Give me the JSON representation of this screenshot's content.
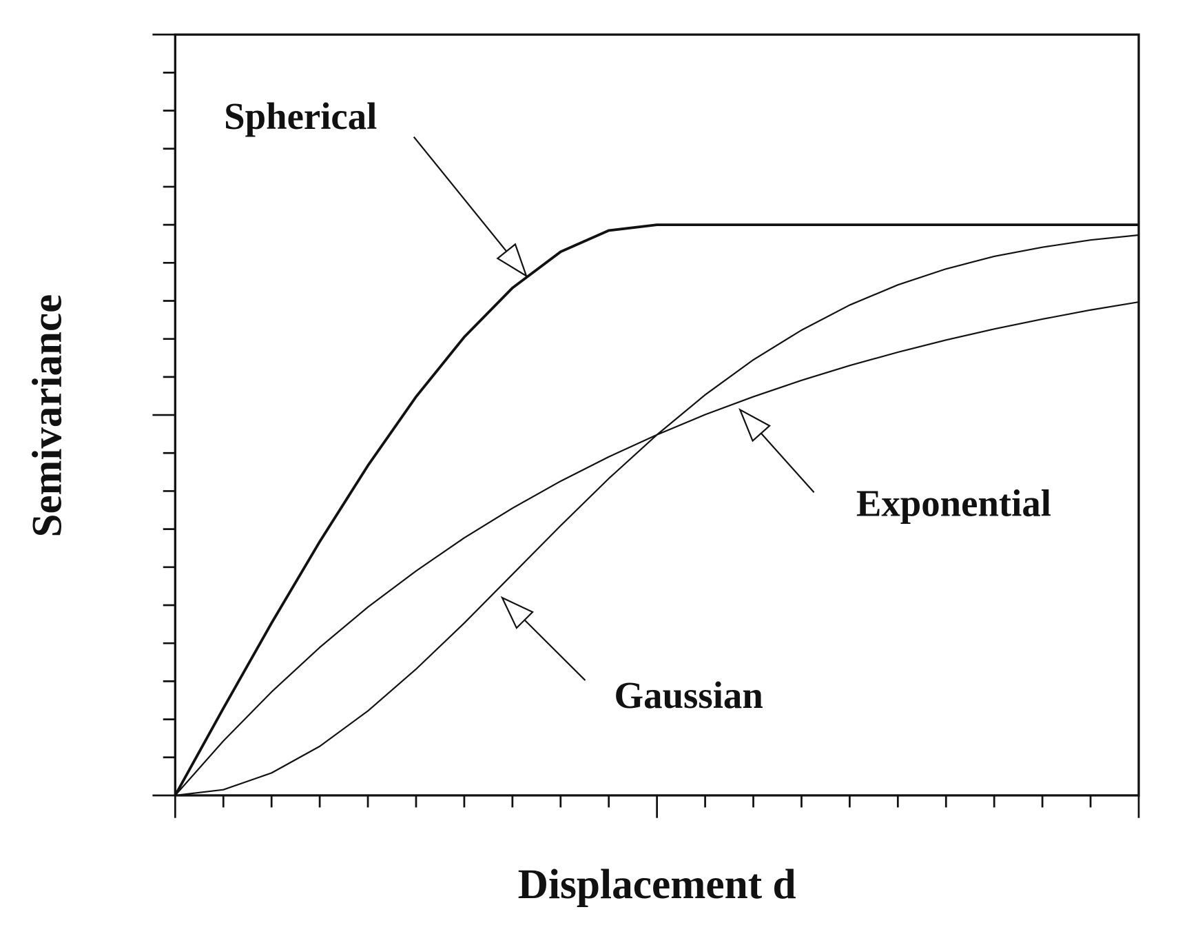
{
  "chart_data": {
    "type": "line",
    "xlabel": "Displacement d",
    "ylabel": "Semivariance",
    "x": [
      0,
      1,
      2,
      3,
      4,
      5,
      6,
      7,
      8,
      9,
      10,
      11,
      12,
      13,
      14,
      15,
      16,
      17,
      18,
      19,
      20
    ],
    "series": [
      {
        "name": "Spherical",
        "color": "#111111",
        "values": [
          0,
          2.29,
          4.53,
          6.67,
          8.67,
          10.48,
          12.05,
          13.34,
          14.29,
          14.85,
          15,
          15,
          15,
          15,
          15,
          15,
          15,
          15,
          15,
          15,
          15
        ]
      },
      {
        "name": "Exponential",
        "color": "#111111",
        "values": [
          0,
          1.43,
          2.72,
          3.89,
          4.95,
          5.9,
          6.77,
          7.55,
          8.26,
          8.9,
          9.48,
          10.01,
          10.48,
          10.91,
          11.3,
          11.65,
          11.97,
          12.26,
          12.52,
          12.76,
          12.97
        ]
      },
      {
        "name": "Gaussian",
        "color": "#111111",
        "values": [
          0,
          0.15,
          0.59,
          1.29,
          2.22,
          3.32,
          4.53,
          5.81,
          7.09,
          8.33,
          9.48,
          10.53,
          11.45,
          12.23,
          12.89,
          13.42,
          13.84,
          14.17,
          14.41,
          14.6,
          14.73
        ]
      }
    ],
    "xlim": [
      0,
      20
    ],
    "ylim": [
      0,
      20
    ],
    "xticks": [
      0,
      1,
      2,
      3,
      4,
      5,
      6,
      7,
      8,
      9,
      10,
      11,
      12,
      13,
      14,
      15,
      16,
      17,
      18,
      19,
      20
    ],
    "yticks": [
      0,
      1,
      2,
      3,
      4,
      5,
      6,
      7,
      8,
      9,
      10,
      11,
      12,
      13,
      14,
      15,
      16,
      17,
      18,
      19,
      20
    ],
    "xticks_major": [
      0,
      10,
      20
    ],
    "yticks_major": [
      0,
      10,
      20
    ]
  }
}
